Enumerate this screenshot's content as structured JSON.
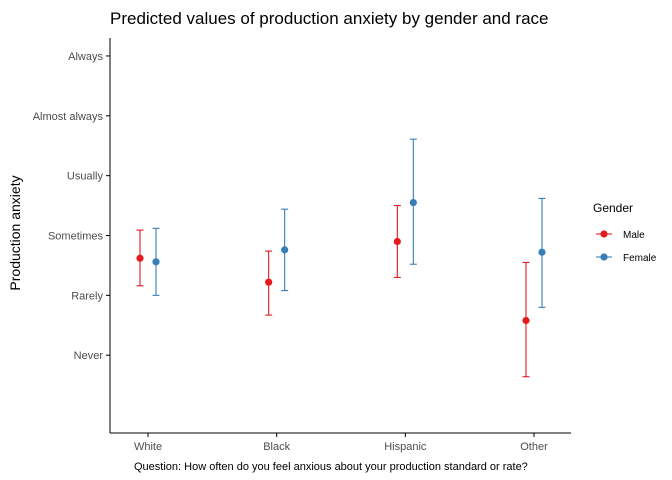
{
  "chart_data": {
    "type": "scatter",
    "title": "Predicted values of production anxiety by gender and race",
    "xlabel": "Question: How often do you feel anxious about your production standard or rate?",
    "ylabel": "Production anxiety",
    "categories": [
      "White",
      "Black",
      "Hispanic",
      "Other"
    ],
    "y_ticks": [
      {
        "value": 1,
        "label": "Never"
      },
      {
        "value": 2,
        "label": "Rarely"
      },
      {
        "value": 3,
        "label": "Sometimes"
      },
      {
        "value": 4,
        "label": "Usually"
      },
      {
        "value": 5,
        "label": "Almost always"
      },
      {
        "value": 6,
        "label": "Always"
      }
    ],
    "ylim": [
      -0.3,
      6.3
    ],
    "grid": false,
    "legend": {
      "title": "Gender",
      "position": "right"
    },
    "series": [
      {
        "name": "Male",
        "color": "#e41a1c",
        "values": [
          2.62,
          2.22,
          2.9,
          1.58
        ],
        "lower": [
          2.16,
          1.67,
          2.3,
          0.64
        ],
        "upper": [
          3.09,
          2.74,
          3.5,
          2.55
        ]
      },
      {
        "name": "Female",
        "color": "#377eb8",
        "values": [
          2.56,
          2.76,
          3.55,
          2.72
        ],
        "lower": [
          2.0,
          2.08,
          2.52,
          1.8
        ],
        "upper": [
          3.12,
          3.44,
          4.61,
          3.62
        ]
      }
    ]
  }
}
